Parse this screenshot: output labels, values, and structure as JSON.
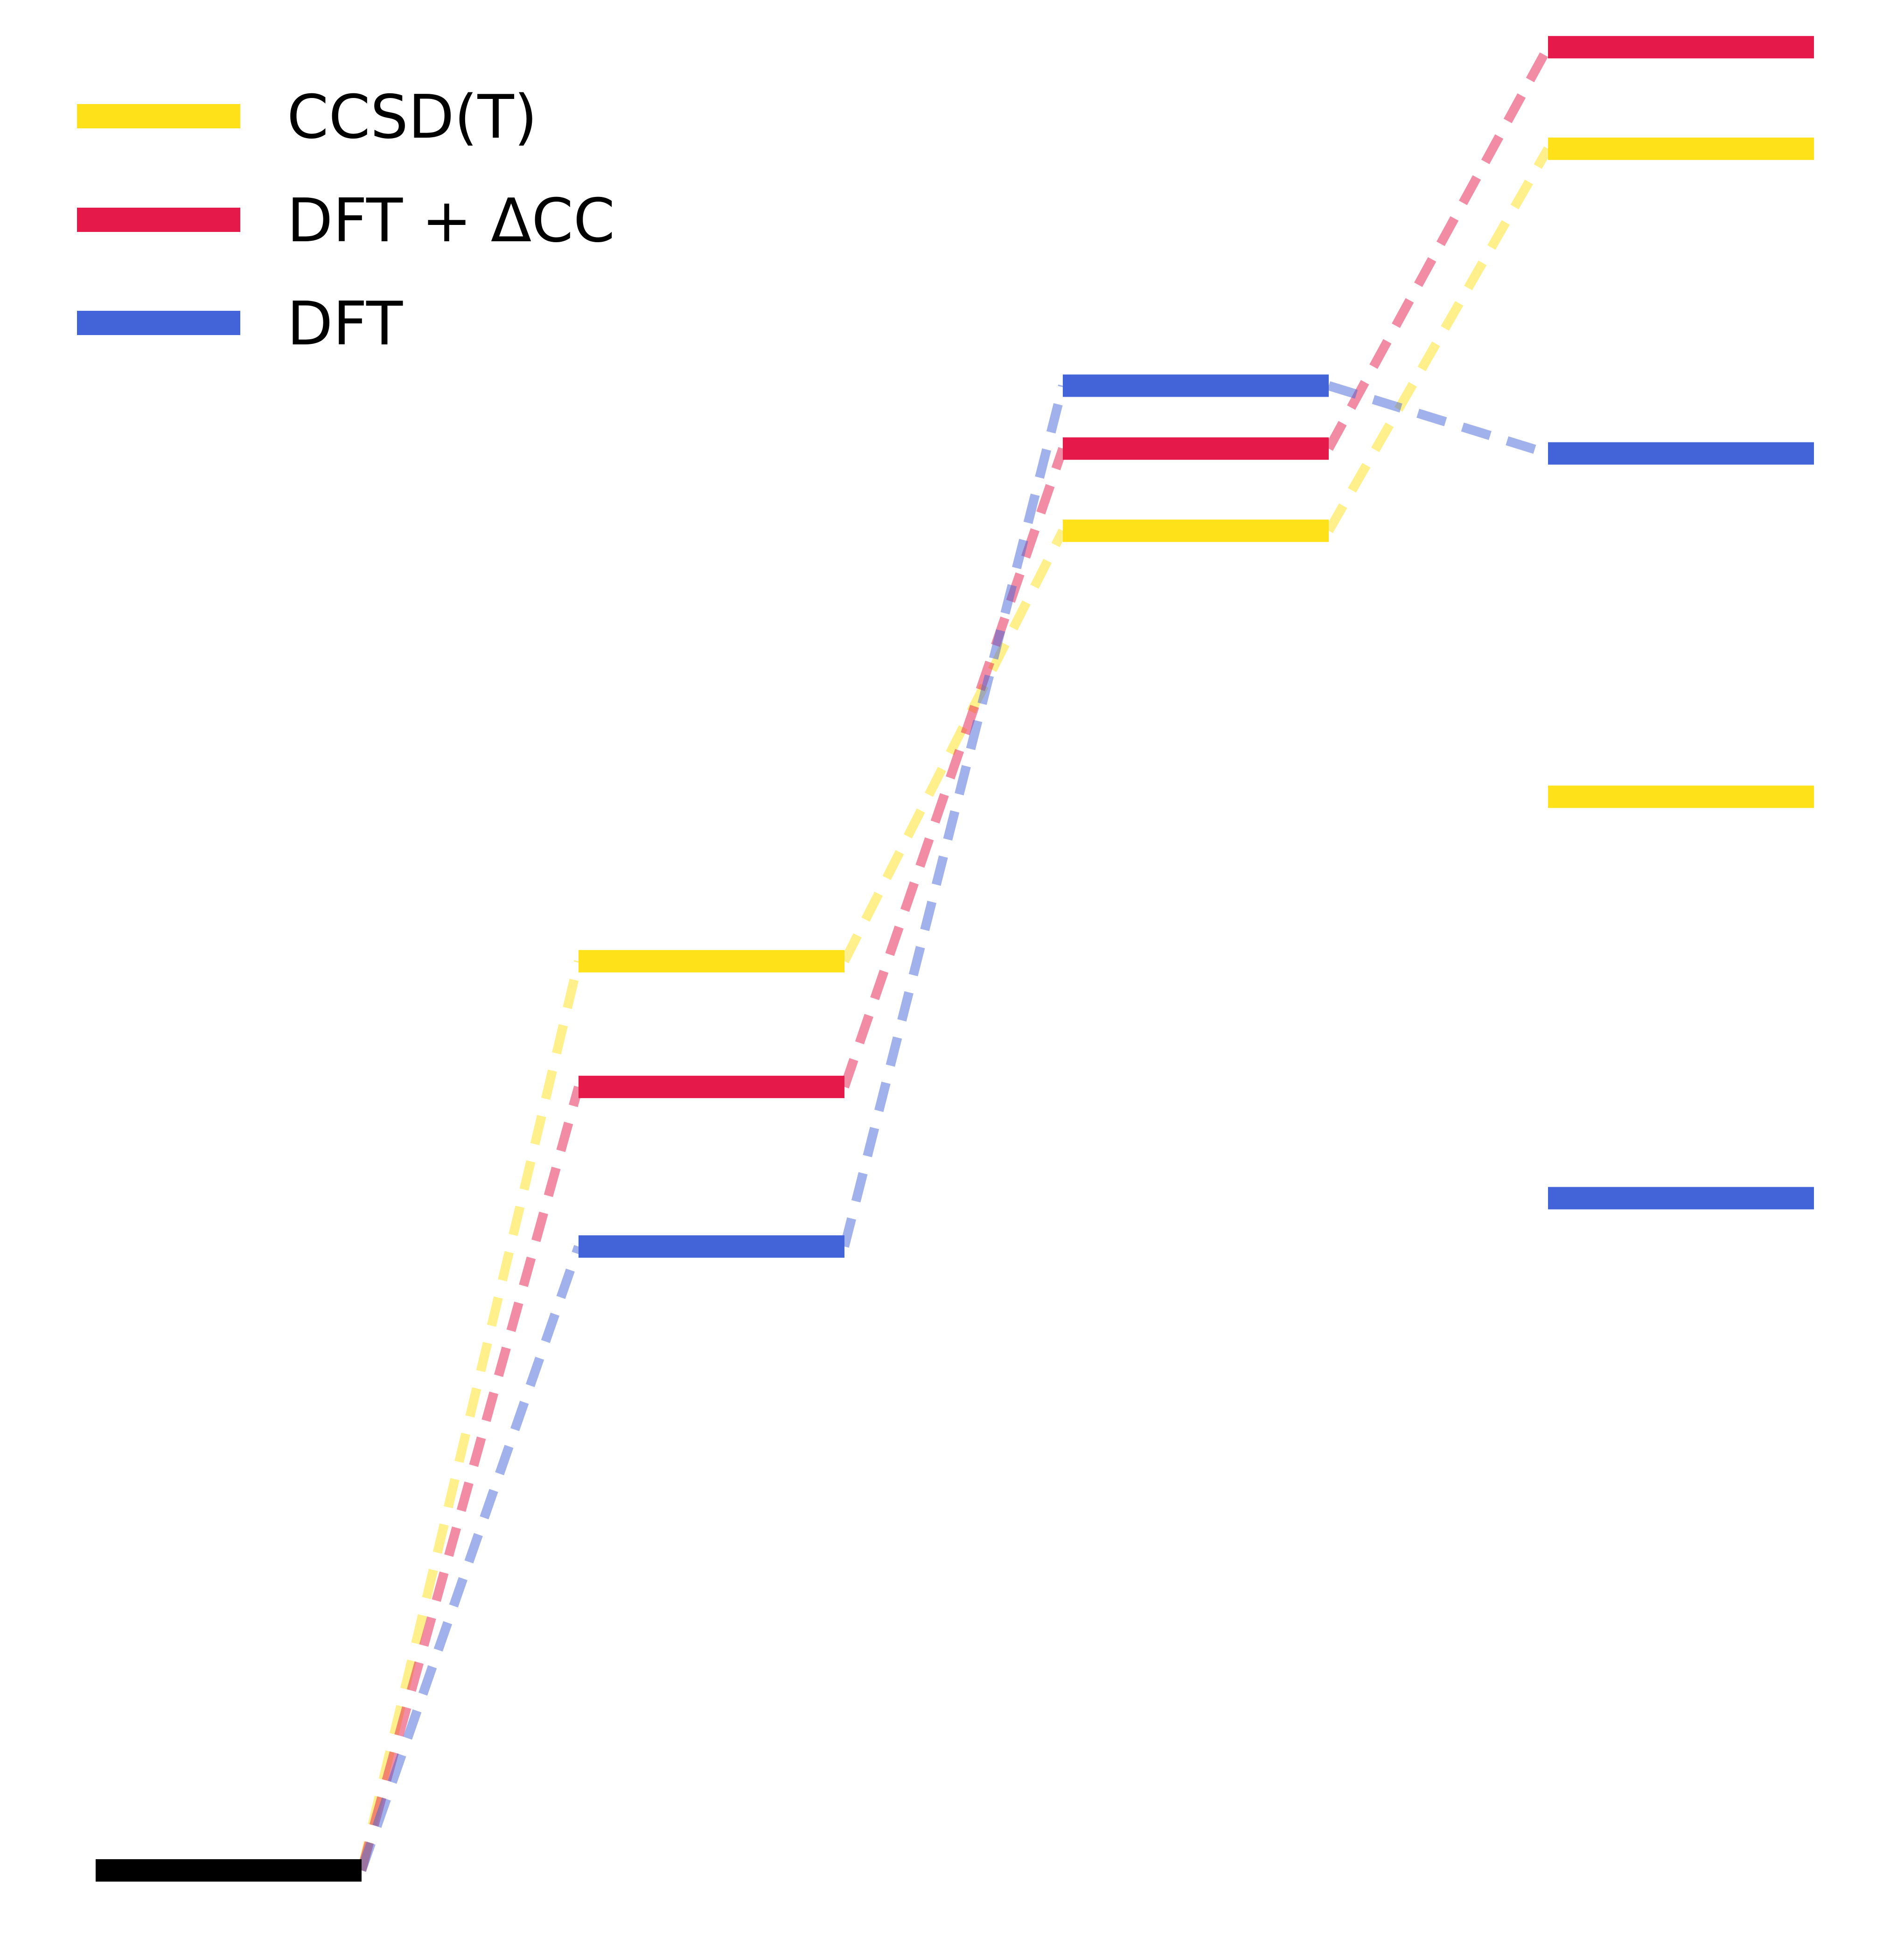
{
  "chart_data": {
    "type": "energy-level-diagram",
    "title": "",
    "xlabel": "",
    "ylabel": "",
    "reference_level": {
      "color": "#000000",
      "value": 0
    },
    "series": [
      {
        "name": "CCSD(T)",
        "color": "#FFE119",
        "levels": [
          {
            "column": 1,
            "value": 1.88
          },
          {
            "column": 2,
            "value": 2.77
          },
          {
            "column": 3,
            "value": 3.56
          }
        ]
      },
      {
        "name": "DFT + ΔCC",
        "color": "#E6194B",
        "levels": [
          {
            "column": 1,
            "value": 1.62
          },
          {
            "column": 2,
            "value": 2.94
          },
          {
            "column": 3,
            "value": 3.77
          }
        ]
      },
      {
        "name": "DFT",
        "color": "#4363D8",
        "levels": [
          {
            "column": 1,
            "value": 1.29
          },
          {
            "column": 2,
            "value": 3.07
          },
          {
            "column": 3,
            "value": 2.93
          }
        ]
      }
    ],
    "unconnected_levels": [
      {
        "series": "CCSD(T)",
        "column": 3,
        "value": 2.22
      },
      {
        "series": "DFT",
        "column": 3,
        "value": 1.39
      }
    ],
    "ylim": [
      0,
      3.8
    ],
    "legend": {
      "position": "top-left",
      "entries": [
        "CCSD(T)",
        "DFT + ΔCC",
        "DFT"
      ]
    },
    "grid": false,
    "axes_visible": false
  }
}
